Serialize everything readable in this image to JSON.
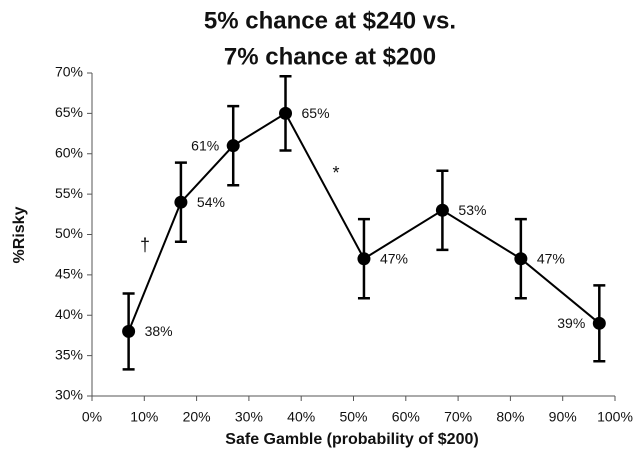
{
  "chart_data": {
    "type": "line",
    "title": [
      "5% chance at $240 vs.",
      "7% chance at $200"
    ],
    "x_label": "Safe Gamble (probability of $200)",
    "y_label": "%Risky",
    "x": [
      7,
      17,
      27,
      37,
      52,
      67,
      82,
      97
    ],
    "values": [
      38,
      54,
      61,
      65,
      47,
      53,
      47,
      39
    ],
    "value_labels": [
      "38%",
      "54%",
      "61%",
      "65%",
      "47%",
      "53%",
      "47%",
      "39%"
    ],
    "errors": [
      4.7,
      4.9,
      4.9,
      4.6,
      4.9,
      4.9,
      4.9,
      4.7
    ],
    "color": "#000000",
    "xlim": [
      0,
      100
    ],
    "xticks": [
      {
        "value": 0,
        "label": "0%"
      },
      {
        "value": 10,
        "label": "10%"
      },
      {
        "value": 20,
        "label": "20%"
      },
      {
        "value": 30,
        "label": "30%"
      },
      {
        "value": 40,
        "label": "40%"
      },
      {
        "value": 50,
        "label": "50%"
      },
      {
        "value": 60,
        "label": "60%"
      },
      {
        "value": 70,
        "label": "70%"
      },
      {
        "value": 80,
        "label": "80%"
      },
      {
        "value": 90,
        "label": "90%"
      },
      {
        "value": 100,
        "label": "100%"
      }
    ],
    "ylim": [
      30,
      70
    ],
    "yticks": [
      {
        "value": 30,
        "label": "30%"
      },
      {
        "value": 35,
        "label": "35%"
      },
      {
        "value": 40,
        "label": "40%"
      },
      {
        "value": 45,
        "label": "45%"
      },
      {
        "value": 50,
        "label": "50%"
      },
      {
        "value": 55,
        "label": "55%"
      },
      {
        "value": 60,
        "label": "60%"
      },
      {
        "value": 65,
        "label": "65%"
      },
      {
        "value": 70,
        "label": "70%"
      }
    ],
    "annotations": [
      "†",
      "*"
    ],
    "grid": false
  }
}
